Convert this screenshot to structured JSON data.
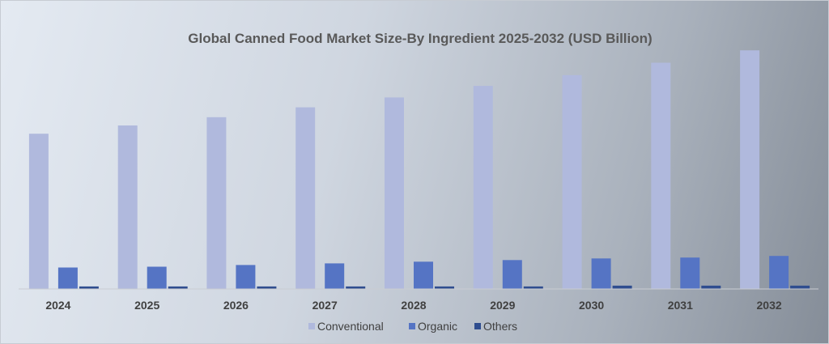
{
  "chart_data": {
    "type": "bar",
    "title": "Global Canned Food Market Size-By Ingredient 2025-2032 (USD Billion)",
    "xlabel": "",
    "ylabel": "",
    "categories": [
      "2024",
      "2025",
      "2026",
      "2027",
      "2028",
      "2029",
      "2030",
      "2031",
      "2032"
    ],
    "series": [
      {
        "name": "Conventional",
        "color": "#b0b9dd",
        "values": [
          188,
          198,
          208,
          220,
          232,
          246,
          259,
          274,
          289
        ]
      },
      {
        "name": "Organic",
        "color": "#5574c4",
        "values": [
          26,
          27,
          29,
          31,
          33,
          35,
          37,
          38,
          40
        ]
      },
      {
        "name": "Others",
        "color": "#2f4d8f",
        "values": [
          3,
          3,
          3,
          3,
          3,
          3,
          4,
          4,
          4
        ]
      }
    ],
    "ylim": [
      0,
      300
    ],
    "grid": false,
    "legend": "bottom-center"
  }
}
